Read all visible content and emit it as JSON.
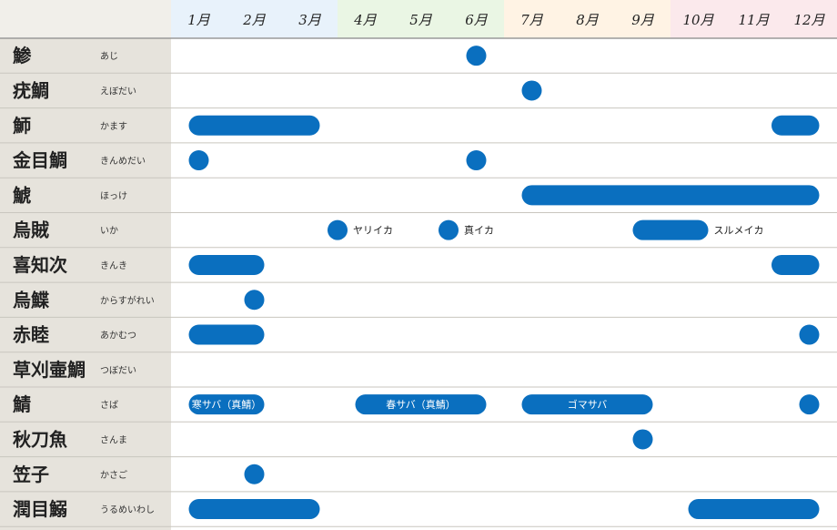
{
  "chart_data": {
    "type": "table",
    "title": "",
    "months": [
      "1月",
      "2月",
      "3月",
      "4月",
      "5月",
      "6月",
      "7月",
      "8月",
      "9月",
      "10月",
      "11月",
      "12月"
    ],
    "month_colors": [
      "#e8f2fb",
      "#e8f2fb",
      "#e8f2fb",
      "#eaf6e4",
      "#eaf6e4",
      "#eaf6e4",
      "#fff3e4",
      "#fff3e4",
      "#fff3e4",
      "#fbe9ec",
      "#fbe9ec",
      "#fbe9ec"
    ],
    "colors": {
      "mark": "#0a6fbf",
      "mark_label": "#ffffff",
      "side_label": "#222222",
      "name_column": "#e6e3dc"
    },
    "rows": [
      {
        "name": "鯵",
        "kana": "あじ",
        "seasons": [
          {
            "start": 6,
            "end": 6,
            "label": "",
            "label_position": "inside"
          }
        ]
      },
      {
        "name": "疣鯛",
        "kana": "えぼだい",
        "seasons": [
          {
            "start": 7,
            "end": 7,
            "label": "",
            "label_position": "inside"
          }
        ]
      },
      {
        "name": "魳",
        "kana": "かます",
        "seasons": [
          {
            "start": 1,
            "end": 3,
            "label": "",
            "label_position": "inside"
          },
          {
            "start": 11.5,
            "end": 12,
            "label": "",
            "label_position": "inside"
          }
        ]
      },
      {
        "name": "金目鯛",
        "kana": "きんめだい",
        "seasons": [
          {
            "start": 1,
            "end": 1,
            "label": "",
            "label_position": "inside"
          },
          {
            "start": 6,
            "end": 6,
            "label": "",
            "label_position": "inside"
          }
        ]
      },
      {
        "name": "鯱",
        "kana": "ほっけ",
        "seasons": [
          {
            "start": 7,
            "end": 12,
            "label": "",
            "label_position": "inside"
          }
        ]
      },
      {
        "name": "烏賊",
        "kana": "いか",
        "seasons": [
          {
            "start": 3.5,
            "end": 3.5,
            "label": "ヤリイカ",
            "label_position": "right"
          },
          {
            "start": 5.5,
            "end": 5.5,
            "label": "真イカ",
            "label_position": "right"
          },
          {
            "start": 9,
            "end": 10,
            "label": "スルメイカ",
            "label_position": "right"
          }
        ]
      },
      {
        "name": "喜知次",
        "kana": "きんき",
        "seasons": [
          {
            "start": 1,
            "end": 2,
            "label": "",
            "label_position": "inside"
          },
          {
            "start": 11.5,
            "end": 12,
            "label": "",
            "label_position": "inside"
          }
        ]
      },
      {
        "name": "烏鰈",
        "kana": "からすがれい",
        "seasons": [
          {
            "start": 2,
            "end": 2,
            "label": "",
            "label_position": "inside"
          }
        ]
      },
      {
        "name": "赤睦",
        "kana": "あかむつ",
        "seasons": [
          {
            "start": 1,
            "end": 2,
            "label": "",
            "label_position": "inside"
          },
          {
            "start": 12,
            "end": 12,
            "label": "",
            "label_position": "inside"
          }
        ]
      },
      {
        "name": "草刈壷鯛",
        "kana": "つぼだい",
        "seasons": []
      },
      {
        "name": "鯖",
        "kana": "さば",
        "seasons": [
          {
            "start": 1,
            "end": 2,
            "label": "寒サバ（真鯖）",
            "label_position": "inside"
          },
          {
            "start": 4,
            "end": 6,
            "label": "春サバ（真鯖）",
            "label_position": "inside"
          },
          {
            "start": 7,
            "end": 9,
            "label": "ゴマサバ",
            "label_position": "inside"
          },
          {
            "start": 12,
            "end": 12,
            "label": "",
            "label_position": "inside"
          }
        ]
      },
      {
        "name": "秋刀魚",
        "kana": "さんま",
        "seasons": [
          {
            "start": 9,
            "end": 9,
            "label": "",
            "label_position": "inside"
          }
        ]
      },
      {
        "name": "笠子",
        "kana": "かさご",
        "seasons": [
          {
            "start": 2,
            "end": 2,
            "label": "",
            "label_position": "inside"
          }
        ]
      },
      {
        "name": "潤目鰯",
        "kana": "うるめいわし",
        "seasons": [
          {
            "start": 1,
            "end": 3,
            "label": "",
            "label_position": "inside"
          },
          {
            "start": 10,
            "end": 12,
            "label": "",
            "label_position": "inside"
          }
        ]
      }
    ]
  }
}
